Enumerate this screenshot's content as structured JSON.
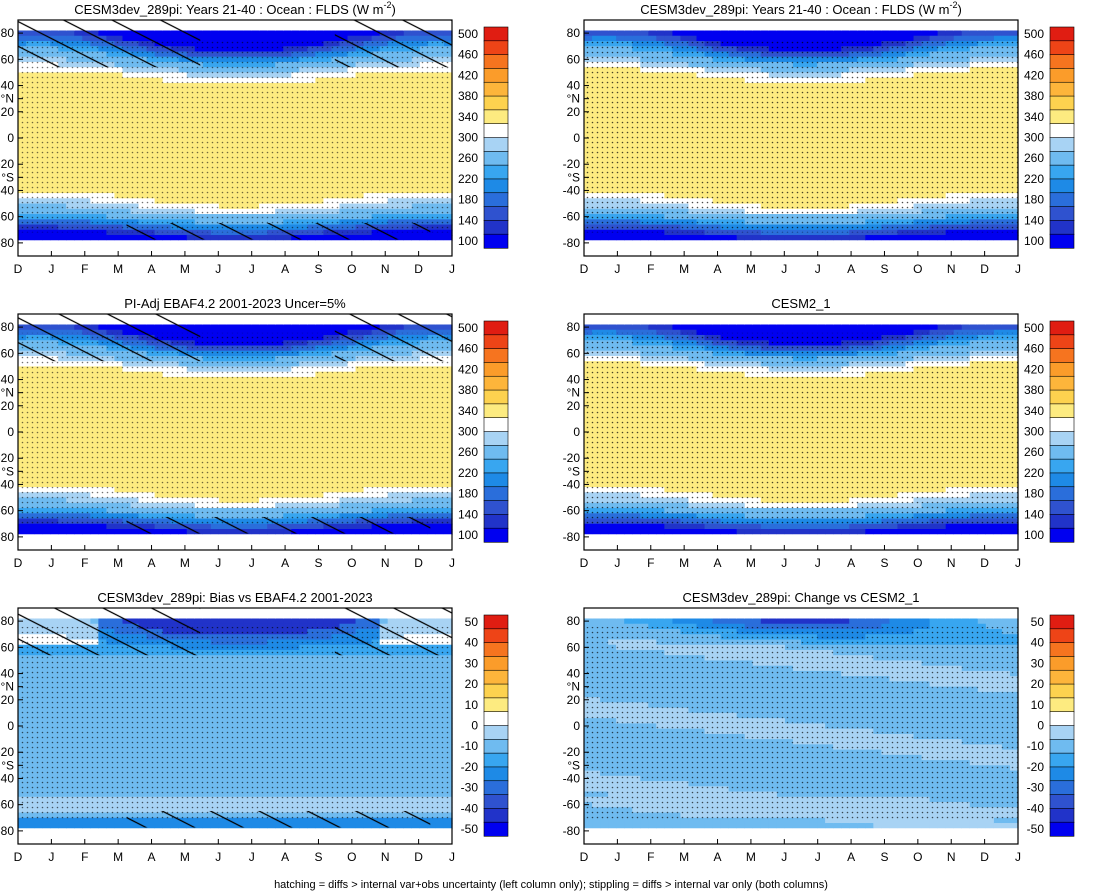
{
  "figure": {
    "caption": "hatching = diffs > internal var+obs uncertainty (left column only); stippling = diffs > internal var only (both columns)"
  },
  "chart_data": [
    {
      "type": "heatmap",
      "title": "CESM3dev_289pi: Years 21-40 : Ocean : FLDS (W m",
      "title_sup": "-2",
      "title_suffix": ")",
      "x_ticks": [
        "D",
        "J",
        "F",
        "M",
        "A",
        "M",
        "J",
        "J",
        "A",
        "S",
        "O",
        "N",
        "D",
        "J"
      ],
      "y_ticks": [
        "80",
        "60",
        "40",
        "°N",
        "20",
        "0",
        "-20",
        "-40",
        "°S",
        "-60",
        "-80"
      ],
      "y_tick_values": [
        80,
        60,
        40,
        30,
        20,
        0,
        -20,
        -40,
        -30,
        -60,
        -80
      ],
      "ylim": [
        -90,
        90
      ],
      "colorbar_labels": [
        "500",
        "460",
        "420",
        "380",
        "340",
        "300",
        "260",
        "220",
        "180",
        "140",
        "100"
      ],
      "field": "abs",
      "hatching": true,
      "stipple_density": 0.55
    },
    {
      "type": "heatmap",
      "title": "CESM3dev_289pi: Years 21-40 : Ocean : FLDS (W m",
      "title_sup": "-2",
      "title_suffix": ")",
      "x_ticks": [
        "D",
        "J",
        "F",
        "M",
        "A",
        "M",
        "J",
        "J",
        "A",
        "S",
        "O",
        "N",
        "D",
        "J"
      ],
      "y_ticks": [
        "80",
        "60",
        "40",
        "°N",
        "20",
        "0",
        "-20",
        "-40",
        "°S",
        "-60",
        "-80"
      ],
      "y_tick_values": [
        80,
        60,
        40,
        30,
        20,
        0,
        -20,
        -40,
        -30,
        -60,
        -80
      ],
      "ylim": [
        -90,
        90
      ],
      "colorbar_labels": [
        "500",
        "460",
        "420",
        "380",
        "340",
        "300",
        "260",
        "220",
        "180",
        "140",
        "100"
      ],
      "field": "abs",
      "hatching": false,
      "stipple_density": 0.7
    },
    {
      "type": "heatmap",
      "title": "PI-Adj EBAF4.2 2001-2023 Uncer=5%",
      "title_sup": "",
      "title_suffix": "",
      "x_ticks": [
        "D",
        "J",
        "F",
        "M",
        "A",
        "M",
        "J",
        "J",
        "A",
        "S",
        "O",
        "N",
        "D",
        "J"
      ],
      "y_ticks": [
        "80",
        "60",
        "40",
        "°N",
        "20",
        "0",
        "-20",
        "-40",
        "°S",
        "-60",
        "-80"
      ],
      "y_tick_values": [
        80,
        60,
        40,
        30,
        20,
        0,
        -20,
        -40,
        -30,
        -60,
        -80
      ],
      "ylim": [
        -90,
        90
      ],
      "colorbar_labels": [
        "500",
        "460",
        "420",
        "380",
        "340",
        "300",
        "260",
        "220",
        "180",
        "140",
        "100"
      ],
      "field": "abs",
      "hatching": true,
      "stipple_density": 0.55
    },
    {
      "type": "heatmap",
      "title": "CESM2_1",
      "title_sup": "",
      "title_suffix": "",
      "x_ticks": [
        "D",
        "J",
        "F",
        "M",
        "A",
        "M",
        "J",
        "J",
        "A",
        "S",
        "O",
        "N",
        "D",
        "J"
      ],
      "y_ticks": [
        "80",
        "60",
        "40",
        "°N",
        "20",
        "0",
        "-20",
        "-40",
        "°S",
        "-60",
        "-80"
      ],
      "y_tick_values": [
        80,
        60,
        40,
        30,
        20,
        0,
        -20,
        -40,
        -30,
        -60,
        -80
      ],
      "ylim": [
        -90,
        90
      ],
      "colorbar_labels": [
        "500",
        "460",
        "420",
        "380",
        "340",
        "300",
        "260",
        "220",
        "180",
        "140",
        "100"
      ],
      "field": "abs",
      "hatching": false,
      "stipple_density": 0.7
    },
    {
      "type": "heatmap",
      "title": "CESM3dev_289pi: Bias vs EBAF4.2 2001-2023",
      "title_sup": "",
      "title_suffix": "",
      "x_ticks": [
        "D",
        "J",
        "F",
        "M",
        "A",
        "M",
        "J",
        "J",
        "A",
        "S",
        "O",
        "N",
        "D",
        "J"
      ],
      "y_ticks": [
        "80",
        "60",
        "40",
        "°N",
        "20",
        "0",
        "-20",
        "-40",
        "°S",
        "-60",
        "-80"
      ],
      "y_tick_values": [
        80,
        60,
        40,
        30,
        20,
        0,
        -20,
        -40,
        -30,
        -60,
        -80
      ],
      "ylim": [
        -90,
        90
      ],
      "colorbar_labels": [
        "50",
        "40",
        "30",
        "20",
        "10",
        "0",
        "-10",
        "-20",
        "-30",
        "-40",
        "-50"
      ],
      "field": "bias",
      "hatching": true,
      "stipple_density": 0.6
    },
    {
      "type": "heatmap",
      "title": "CESM3dev_289pi: Change vs CESM2_1",
      "title_sup": "",
      "title_suffix": "",
      "x_ticks": [
        "D",
        "J",
        "F",
        "M",
        "A",
        "M",
        "J",
        "J",
        "A",
        "S",
        "O",
        "N",
        "D",
        "J"
      ],
      "y_ticks": [
        "80",
        "60",
        "40",
        "°N",
        "20",
        "0",
        "-20",
        "-40",
        "°S",
        "-60",
        "-80"
      ],
      "y_tick_values": [
        80,
        60,
        40,
        30,
        20,
        0,
        -20,
        -40,
        -30,
        -60,
        -80
      ],
      "ylim": [
        -90,
        90
      ],
      "colorbar_labels": [
        "50",
        "40",
        "30",
        "20",
        "10",
        "0",
        "-10",
        "-20",
        "-30",
        "-40",
        "-50"
      ],
      "field": "change",
      "hatching": false,
      "stipple_density": 0.65
    }
  ]
}
